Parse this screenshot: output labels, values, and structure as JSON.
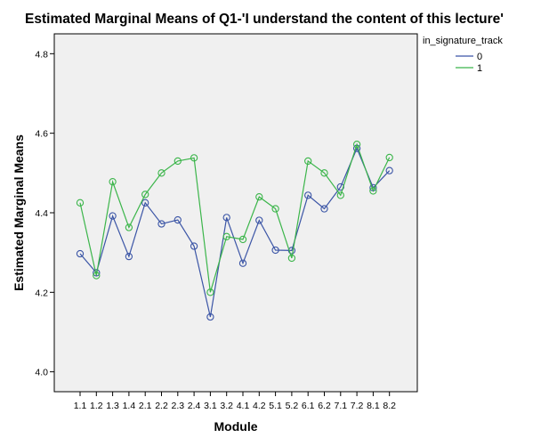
{
  "chart_data": {
    "type": "line",
    "title": "Estimated Marginal Means of Q1-'I understand the content of this lecture'",
    "xlabel": "Module",
    "ylabel": "Estimated Marginal Means",
    "categories": [
      "1.1",
      "1.2",
      "1.3",
      "1.4",
      "2.1",
      "2.2",
      "2.3",
      "2.4",
      "3.1",
      "3.2",
      "4.1",
      "4.2",
      "5.1",
      "5.2",
      "6.1",
      "6.2",
      "7.1",
      "7.2",
      "8.1",
      "8.2"
    ],
    "ylim": [
      3.95,
      4.85
    ],
    "yticks": [
      "4.0",
      "4.2",
      "4.4",
      "4.6",
      "4.8"
    ],
    "ytick_values": [
      4.0,
      4.2,
      4.4,
      4.6,
      4.8
    ],
    "legend": {
      "title": "in_signature_track",
      "placement": "top-right"
    },
    "grid": false,
    "series": [
      {
        "name": "0",
        "color": "#3b55a6",
        "values": [
          4.297,
          4.249,
          4.392,
          4.29,
          4.425,
          4.372,
          4.382,
          4.316,
          4.138,
          4.388,
          4.273,
          4.381,
          4.306,
          4.305,
          4.444,
          4.41,
          4.465,
          4.562,
          4.463,
          4.506
        ]
      },
      {
        "name": "1",
        "color": "#3bb54a",
        "values": [
          4.425,
          4.242,
          4.478,
          4.363,
          4.446,
          4.5,
          4.53,
          4.538,
          4.2,
          4.34,
          4.333,
          4.44,
          4.41,
          4.286,
          4.53,
          4.5,
          4.444,
          4.572,
          4.455,
          4.539
        ]
      }
    ]
  },
  "colors": {
    "plot_background": "#f0f0f0"
  }
}
